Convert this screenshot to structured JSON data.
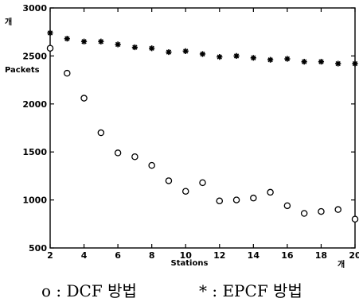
{
  "chart_data": {
    "type": "scatter",
    "xlabel": "Stations",
    "ylabel": "Packets",
    "x_unit": "개",
    "y_unit": "개",
    "xlim": [
      2,
      20
    ],
    "ylim": [
      500,
      3000
    ],
    "xticks": [
      2,
      4,
      6,
      8,
      10,
      12,
      14,
      16,
      18,
      20
    ],
    "yticks": [
      500,
      1000,
      1500,
      2000,
      2500,
      3000
    ],
    "grid": false,
    "series": [
      {
        "name": "DCF 방법",
        "marker": "o",
        "x": [
          2,
          3,
          4,
          5,
          6,
          7,
          8,
          9,
          10,
          11,
          12,
          13,
          14,
          15,
          16,
          17,
          18,
          19,
          20
        ],
        "y": [
          2580,
          2320,
          2060,
          1700,
          1490,
          1450,
          1360,
          1200,
          1090,
          1180,
          990,
          1000,
          1020,
          1080,
          940,
          860,
          880,
          900,
          800
        ]
      },
      {
        "name": "EPCF 방법",
        "marker": "*",
        "x": [
          2,
          3,
          4,
          5,
          6,
          7,
          8,
          9,
          10,
          11,
          12,
          13,
          14,
          15,
          16,
          17,
          18,
          19,
          20
        ],
        "y": [
          2740,
          2680,
          2650,
          2650,
          2620,
          2590,
          2580,
          2540,
          2550,
          2520,
          2490,
          2500,
          2480,
          2460,
          2470,
          2440,
          2440,
          2420,
          2420
        ]
      }
    ]
  },
  "legend": {
    "dcf_symbol": "o",
    "dcf_text": ": DCF 방법",
    "epcf_symbol": "*",
    "epcf_text": ": EPCF 방법"
  }
}
